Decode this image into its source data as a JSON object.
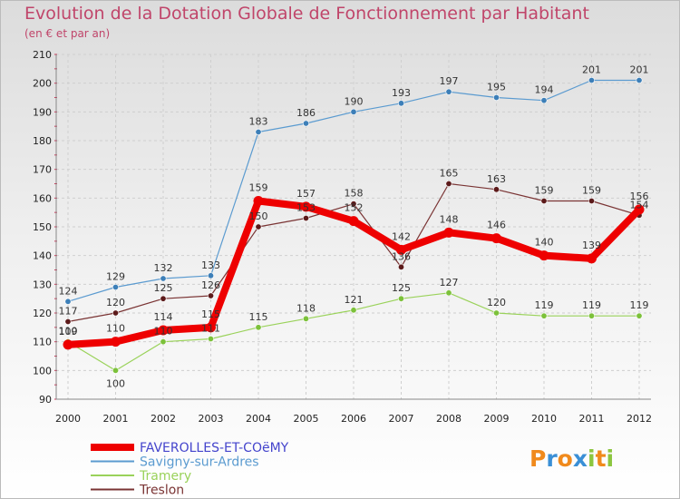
{
  "chart_data": {
    "type": "line",
    "title": "Evolution de la Dotation Globale de Fonctionnement par Habitant",
    "subtitle": "(en € et par an)",
    "xlabel": "",
    "ylabel": "",
    "ylim": [
      90,
      210
    ],
    "yticks": [
      90,
      100,
      110,
      120,
      130,
      140,
      150,
      160,
      170,
      180,
      190,
      200,
      210
    ],
    "x": [
      "2000",
      "2001",
      "2002",
      "2003",
      "2004",
      "2005",
      "2006",
      "2007",
      "2008",
      "2009",
      "2010",
      "2011",
      "2012"
    ],
    "grid": true,
    "legend_position": "bottom-left",
    "series": [
      {
        "name": "Savigny-sur-Ardres",
        "color": "#5b9bd0",
        "point_color": "#3d7fb8",
        "width": 1.2,
        "label_side": "above",
        "values": [
          124,
          129,
          132,
          133,
          183,
          186,
          190,
          193,
          197,
          195,
          194,
          201,
          201
        ]
      },
      {
        "name": "Tramery",
        "color": "#9ad25a",
        "point_color": "#7cc13a",
        "width": 1.2,
        "label_side": "above",
        "values": [
          110,
          100,
          110,
          111,
          115,
          118,
          121,
          125,
          127,
          120,
          119,
          119,
          119
        ]
      },
      {
        "name": "Treslon",
        "color": "#7a3434",
        "point_color": "#5c1a1a",
        "width": 1.2,
        "label_side": "above",
        "values": [
          117,
          120,
          125,
          126,
          150,
          153,
          158,
          136,
          165,
          163,
          159,
          159,
          154
        ]
      },
      {
        "name": "FAVEROLLES-ET-COëMY",
        "color": "#ee0000",
        "point_color": "#ee0000",
        "width": 8,
        "label_side": "above",
        "values": [
          109,
          110,
          114,
          115,
          159,
          157,
          152,
          142,
          148,
          146,
          140,
          139,
          156
        ]
      }
    ],
    "legend_order": [
      "FAVEROLLES-ET-COëMY",
      "Savigny-sur-Ardres",
      "Tramery",
      "Treslon"
    ],
    "data_labels": [
      {
        "series": "Savigny-sur-Ardres",
        "x": "2000",
        "text": "124"
      },
      {
        "series": "Savigny-sur-Ardres",
        "x": "2001",
        "text": "129"
      },
      {
        "series": "Savigny-sur-Ardres",
        "x": "2002",
        "text": "132"
      },
      {
        "series": "Savigny-sur-Ardres",
        "x": "2003",
        "text": "133"
      },
      {
        "series": "Savigny-sur-Ardres",
        "x": "2004",
        "text": "183"
      },
      {
        "series": "Savigny-sur-Ardres",
        "x": "2005",
        "text": "186"
      },
      {
        "series": "Savigny-sur-Ardres",
        "x": "2006",
        "text": "190"
      },
      {
        "series": "Savigny-sur-Ardres",
        "x": "2007",
        "text": "193"
      },
      {
        "series": "Savigny-sur-Ardres",
        "x": "2008",
        "text": "197"
      },
      {
        "series": "Savigny-sur-Ardres",
        "x": "2009",
        "text": "195"
      },
      {
        "series": "Savigny-sur-Ardres",
        "x": "2010",
        "text": "194"
      },
      {
        "series": "Savigny-sur-Ardres",
        "x": "2011",
        "text": "201"
      },
      {
        "series": "Savigny-sur-Ardres",
        "x": "2012",
        "text": "201"
      },
      {
        "series": "Tramery",
        "x": "2000",
        "text": "110"
      },
      {
        "series": "Tramery",
        "x": "2001",
        "text": "100",
        "below": true
      },
      {
        "series": "Tramery",
        "x": "2002",
        "text": "110"
      },
      {
        "series": "Tramery",
        "x": "2003",
        "text": "111"
      },
      {
        "series": "Tramery",
        "x": "2004",
        "text": "115"
      },
      {
        "series": "Tramery",
        "x": "2005",
        "text": "118"
      },
      {
        "series": "Tramery",
        "x": "2006",
        "text": "121"
      },
      {
        "series": "Tramery",
        "x": "2007",
        "text": "125"
      },
      {
        "series": "Tramery",
        "x": "2008",
        "text": "127"
      },
      {
        "series": "Tramery",
        "x": "2009",
        "text": "120"
      },
      {
        "series": "Tramery",
        "x": "2010",
        "text": "119"
      },
      {
        "series": "Tramery",
        "x": "2011",
        "text": "119"
      },
      {
        "series": "Tramery",
        "x": "2012",
        "text": "119"
      },
      {
        "series": "Treslon",
        "x": "2000",
        "text": "117"
      },
      {
        "series": "Treslon",
        "x": "2001",
        "text": "120"
      },
      {
        "series": "Treslon",
        "x": "2002",
        "text": "125"
      },
      {
        "series": "Treslon",
        "x": "2003",
        "text": "126"
      },
      {
        "series": "Treslon",
        "x": "2004",
        "text": "150"
      },
      {
        "series": "Treslon",
        "x": "2005",
        "text": "153"
      },
      {
        "series": "Treslon",
        "x": "2006",
        "text": "158"
      },
      {
        "series": "Treslon",
        "x": "2007",
        "text": "136"
      },
      {
        "series": "Treslon",
        "x": "2008",
        "text": "165"
      },
      {
        "series": "Treslon",
        "x": "2009",
        "text": "163"
      },
      {
        "series": "Treslon",
        "x": "2010",
        "text": "159"
      },
      {
        "series": "Treslon",
        "x": "2011",
        "text": "159"
      },
      {
        "series": "Treslon",
        "x": "2012",
        "text": "154"
      },
      {
        "series": "FAVEROLLES-ET-COëMY",
        "x": "2000",
        "text": "109"
      },
      {
        "series": "FAVEROLLES-ET-COëMY",
        "x": "2001",
        "text": "110"
      },
      {
        "series": "FAVEROLLES-ET-COëMY",
        "x": "2002",
        "text": "114"
      },
      {
        "series": "FAVEROLLES-ET-COëMY",
        "x": "2003",
        "text": "115"
      },
      {
        "series": "FAVEROLLES-ET-COëMY",
        "x": "2004",
        "text": "159"
      },
      {
        "series": "FAVEROLLES-ET-COëMY",
        "x": "2005",
        "text": "157"
      },
      {
        "series": "FAVEROLLES-ET-COëMY",
        "x": "2006",
        "text": "152"
      },
      {
        "series": "FAVEROLLES-ET-COëMY",
        "x": "2007",
        "text": "142"
      },
      {
        "series": "FAVEROLLES-ET-COëMY",
        "x": "2008",
        "text": "148"
      },
      {
        "series": "FAVEROLLES-ET-COëMY",
        "x": "2009",
        "text": "146"
      },
      {
        "series": "FAVEROLLES-ET-COëMY",
        "x": "2010",
        "text": "140"
      },
      {
        "series": "FAVEROLLES-ET-COëMY",
        "x": "2011",
        "text": "139"
      },
      {
        "series": "FAVEROLLES-ET-COëMY",
        "x": "2012",
        "text": "156"
      }
    ]
  },
  "logo": {
    "text": "Proxiti",
    "letters": [
      "P",
      "r",
      "o",
      "x",
      "i",
      "t",
      "i"
    ],
    "colors": [
      "#f08a1c",
      "#3a8fd6",
      "#f08a1c",
      "#3a8fd6",
      "#8cc63f",
      "#f08a1c",
      "#8cc63f"
    ]
  }
}
